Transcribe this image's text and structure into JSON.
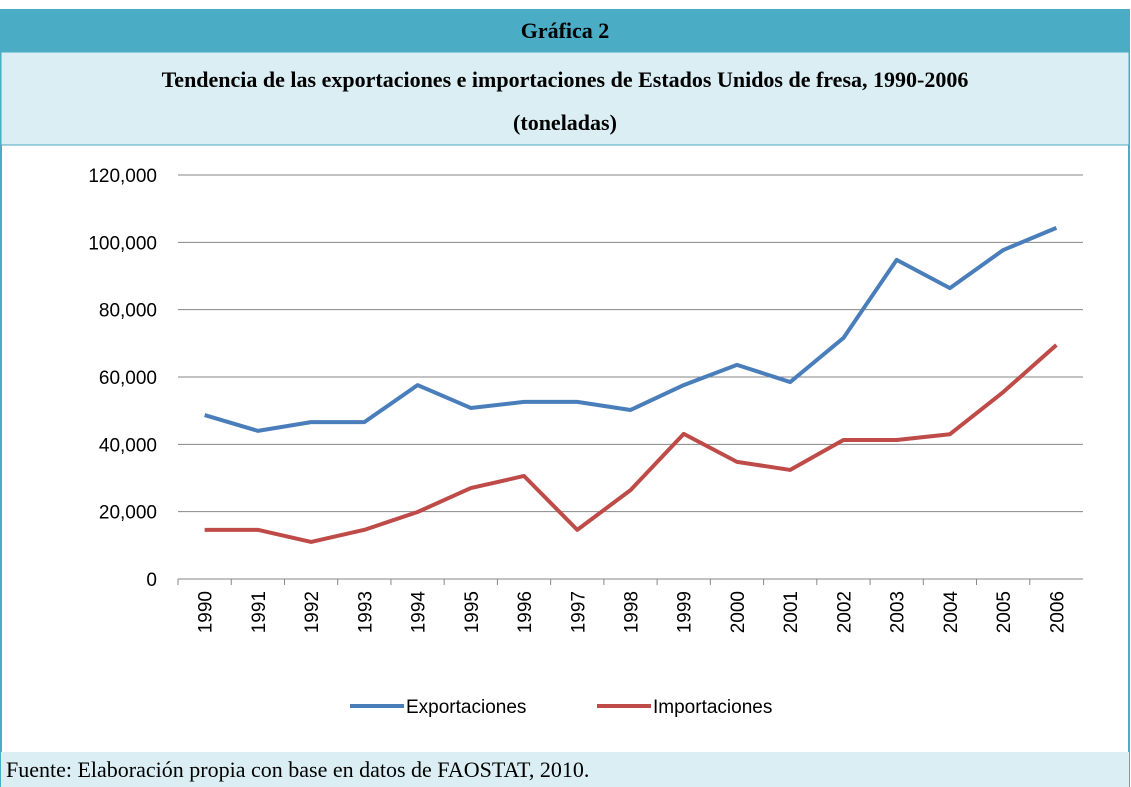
{
  "chart_data": {
    "type": "line",
    "title": "Gráfica 2",
    "subtitle": [
      "Tendencia de las exportaciones e importaciones de Estados Unidos de fresa, 1990-2006",
      "(toneladas)"
    ],
    "source": "Fuente: Elaboración propia con base en datos de FAOSTAT, 2010.",
    "categories": [
      "1990",
      "1991",
      "1992",
      "1993",
      "1994",
      "1995",
      "1996",
      "1997",
      "1998",
      "1999",
      "2000",
      "2001",
      "2002",
      "2003",
      "2004",
      "2005",
      "2006"
    ],
    "series": [
      {
        "name": "Exportaciones",
        "color": "#4a7ebb",
        "values": [
          48700,
          44000,
          46600,
          46600,
          57600,
          50800,
          52600,
          52600,
          50200,
          57600,
          63600,
          58500,
          71600,
          94800,
          86400,
          97700,
          104300
        ]
      },
      {
        "name": "Importaciones",
        "color": "#be4b48",
        "values": [
          14600,
          14600,
          11000,
          14600,
          19900,
          27000,
          30600,
          14600,
          26400,
          43100,
          34800,
          32400,
          41300,
          41300,
          43000,
          55500,
          69500
        ]
      }
    ],
    "ylim": [
      0,
      120000
    ],
    "yticks": [
      0,
      {
        "value": 20000,
        "label": "20,000"
      },
      {
        "value": 40000,
        "label": "40,000"
      },
      {
        "value": 60000,
        "label": "60,000"
      },
      {
        "value": 80000,
        "label": "80,000"
      },
      {
        "value": 100000,
        "label": "100,000"
      },
      {
        "value": 120000,
        "label": "120,000"
      }
    ],
    "grid": true,
    "legend": "bottom"
  }
}
